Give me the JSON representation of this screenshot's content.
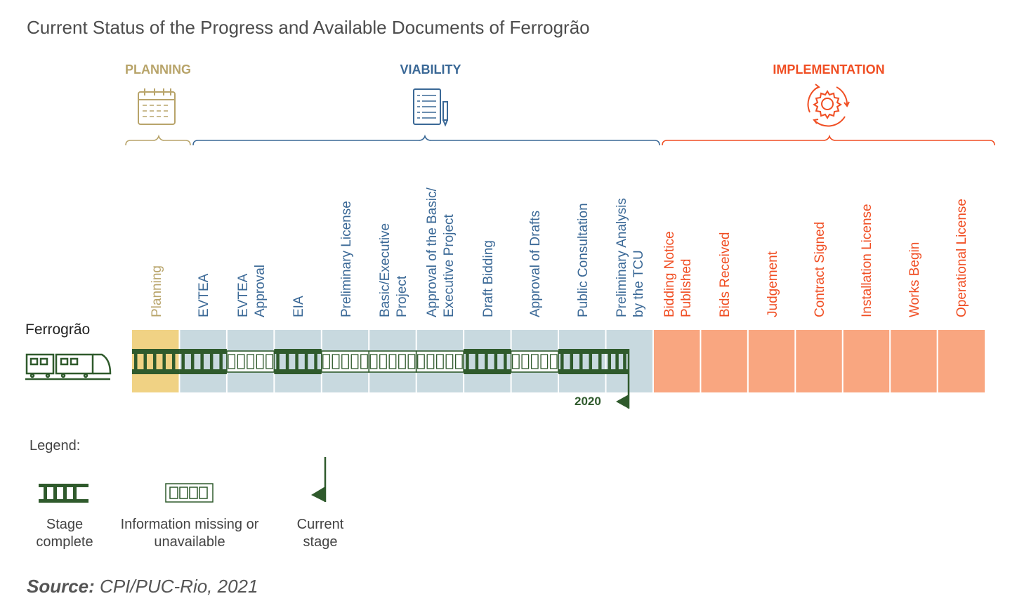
{
  "title": "Current Status of the Progress and Available Documents of Ferrogrão",
  "colors": {
    "planning": "#b8a46a",
    "viability": "#3a6896",
    "implementation": "#f04e23",
    "planning_fill": "#f0d284",
    "viability_fill": "#c8d9df",
    "implementation_fill": "#f9a680",
    "track": "#2f5a2c"
  },
  "phases": {
    "planning": "PLANNING",
    "viability": "VIABILITY",
    "implementation": "IMPLEMENTATION"
  },
  "icons": {
    "planning": "calendar-icon",
    "viability": "document-checklist-icon",
    "implementation": "gear-cycle-icon",
    "row": "train-icon"
  },
  "stages": [
    {
      "lines": [
        "Planning"
      ],
      "phase": "planning",
      "status": "complete"
    },
    {
      "lines": [
        "EVTEA"
      ],
      "phase": "viability",
      "status": "complete"
    },
    {
      "lines": [
        "EVTEA",
        "Approval"
      ],
      "phase": "viability",
      "status": "missing"
    },
    {
      "lines": [
        "EIA"
      ],
      "phase": "viability",
      "status": "complete"
    },
    {
      "lines": [
        "Preliminary License"
      ],
      "phase": "viability",
      "status": "missing"
    },
    {
      "lines": [
        "Basic/Executive",
        "Project"
      ],
      "phase": "viability",
      "status": "missing"
    },
    {
      "lines": [
        "Approval of the Basic/",
        "Executive Project"
      ],
      "phase": "viability",
      "status": "missing"
    },
    {
      "lines": [
        "Draft Bidding"
      ],
      "phase": "viability",
      "status": "complete"
    },
    {
      "lines": [
        "Approval of Drafts"
      ],
      "phase": "viability",
      "status": "missing"
    },
    {
      "lines": [
        "Public Consultation"
      ],
      "phase": "viability",
      "status": "complete"
    },
    {
      "lines": [
        "Preliminary Analysis",
        "by the TCU"
      ],
      "phase": "viability",
      "status": "complete"
    },
    {
      "lines": [
        "Bidding Notice",
        "Published"
      ],
      "phase": "implementation",
      "status": "pending"
    },
    {
      "lines": [
        "Bids Received"
      ],
      "phase": "implementation",
      "status": "pending"
    },
    {
      "lines": [
        "Judgement"
      ],
      "phase": "implementation",
      "status": "pending"
    },
    {
      "lines": [
        "Contract Signed"
      ],
      "phase": "implementation",
      "status": "pending"
    },
    {
      "lines": [
        "Installation License"
      ],
      "phase": "implementation",
      "status": "pending"
    },
    {
      "lines": [
        "Works Begin"
      ],
      "phase": "implementation",
      "status": "pending"
    },
    {
      "lines": [
        "Operational License"
      ],
      "phase": "implementation",
      "status": "pending"
    }
  ],
  "row_label": "Ferrogrão",
  "current_stage": {
    "year": "2020",
    "stage_index": 10
  },
  "legend": {
    "title": "Legend:",
    "complete": "Stage complete",
    "missing": "Information missing or unavailable",
    "current": "Current stage"
  },
  "source": {
    "label": "Source:",
    "text": "CPI/PUC-Rio, 2021"
  }
}
